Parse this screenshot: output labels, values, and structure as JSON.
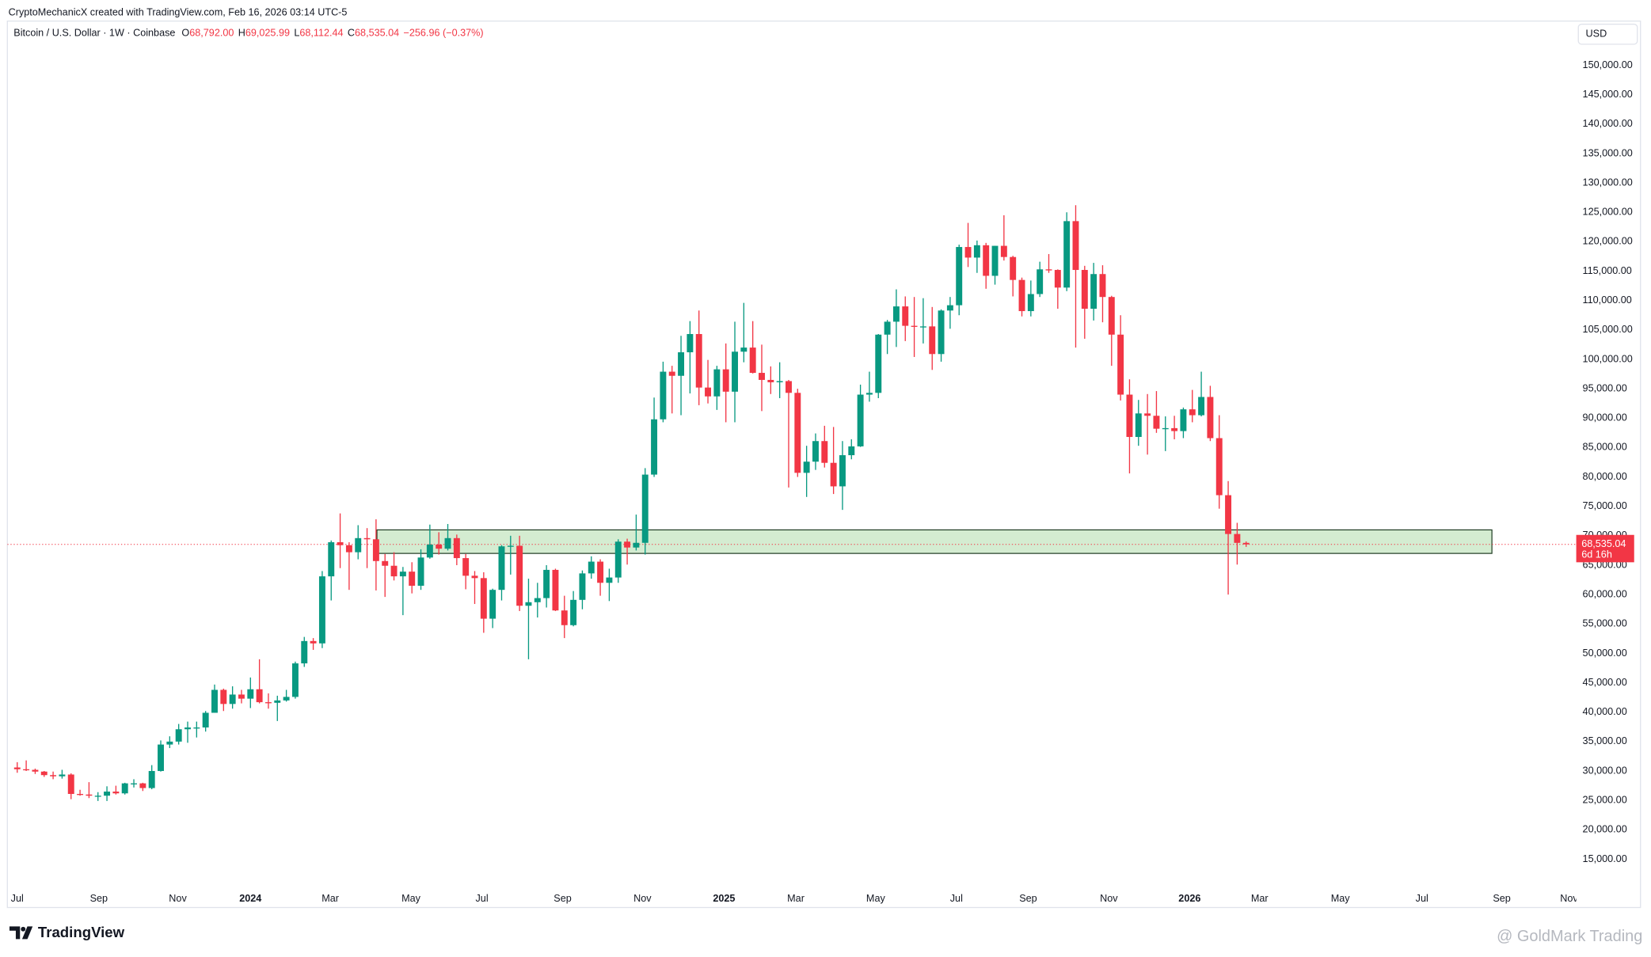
{
  "header": "CryptoMechanicX created with TradingView.com, Feb 16, 2026 03:14 UTC-5",
  "brand": "TradingView",
  "watermark": "@ GoldMark Trading",
  "currency": "USD",
  "chart_data": {
    "type": "candlestick",
    "title": "Bitcoin / U.S. Dollar · 1W · Coinbase",
    "stats": [
      {
        "prefix": "O",
        "text": "68,792.00"
      },
      {
        "prefix": "H",
        "text": "69,025.99"
      },
      {
        "prefix": "L",
        "text": "68,112.44"
      },
      {
        "prefix": "C",
        "text": "68,535.04"
      },
      {
        "text": "−256.96 (−0.37%)"
      }
    ],
    "up_color": "#089981",
    "down_color": "#f23645",
    "open": [
      30600,
      30300,
      30200,
      29900,
      29300,
      29100,
      29400,
      26100,
      26000,
      25800,
      25800,
      26500,
      26200,
      27900,
      27900,
      27100,
      30000,
      34500,
      35000,
      37100,
      37400,
      37400,
      39900,
      43800,
      41400,
      43000,
      42300,
      43900,
      41700,
      41600,
      42000,
      42600,
      48300,
      52100,
      51700,
      63100,
      68900,
      68400,
      67200,
      69600,
      69400,
      65700,
      64900,
      63100,
      63900,
      61500,
      66300,
      68500,
      67800,
      69600,
      66200,
      63200,
      62800,
      55900,
      60800,
      68200,
      68300,
      58100,
      58700,
      59400,
      64200,
      57300,
      54800,
      59100,
      63600,
      65600,
      62000,
      62900,
      69000,
      68000,
      68800,
      80400,
      89800,
      97900,
      97200,
      101200,
      104300,
      95200,
      93700,
      98300,
      94500,
      101300,
      102000,
      97700,
      96500,
      96100,
      96300,
      94300,
      80700,
      82600,
      86100,
      82400,
      78400,
      83700,
      85200,
      94000,
      94300,
      104200,
      106400,
      109000,
      105700,
      105600,
      105600,
      100900,
      108300,
      109200,
      119100,
      117300,
      119400,
      114200,
      119300,
      117400,
      113500,
      108200,
      111100,
      115300,
      115200,
      112200,
      123500,
      115200,
      108600,
      114500,
      110600,
      104200,
      94000,
      86800,
      90800,
      90400,
      88200,
      88300,
      87800,
      91500,
      90500,
      93600,
      86600,
      76900,
      70300,
      68792
    ],
    "high": [
      31500,
      31800,
      30400,
      30000,
      29900,
      30200,
      29600,
      26800,
      28100,
      26400,
      27400,
      27500,
      28000,
      28600,
      28000,
      31000,
      35200,
      35900,
      38000,
      38400,
      38400,
      40200,
      44700,
      44000,
      44400,
      43800,
      45900,
      49000,
      43200,
      42800,
      43800,
      48600,
      52800,
      52600,
      64000,
      69200,
      73800,
      68900,
      71800,
      71300,
      72800,
      66900,
      67200,
      64700,
      65500,
      67700,
      71900,
      70600,
      72000,
      70200,
      66900,
      64000,
      63800,
      61000,
      68400,
      70000,
      70000,
      62700,
      62000,
      65000,
      64400,
      59800,
      60600,
      64100,
      66500,
      66000,
      64400,
      69400,
      69500,
      73600,
      81500,
      93500,
      99600,
      98900,
      104000,
      106500,
      108300,
      99900,
      98900,
      102700,
      106400,
      109600,
      106500,
      102500,
      98800,
      99500,
      96500,
      95000,
      85300,
      87400,
      88700,
      88500,
      86100,
      86400,
      95700,
      97900,
      104300,
      106700,
      111900,
      110700,
      110600,
      110400,
      108900,
      108500,
      110600,
      119500,
      123200,
      120200,
      119800,
      119300,
      124500,
      117600,
      113900,
      113400,
      116600,
      117900,
      115300,
      125000,
      126200,
      115900,
      116400,
      116000,
      110800,
      107500,
      96600,
      93100,
      94100,
      94600,
      90300,
      90400,
      91800,
      94800,
      97900,
      95500,
      90500,
      79300,
      72200,
      69025.99
    ],
    "low": [
      29700,
      30000,
      29500,
      29000,
      28600,
      28700,
      25200,
      25800,
      25400,
      24900,
      24900,
      26000,
      26000,
      27200,
      26600,
      26900,
      29900,
      33900,
      34500,
      34800,
      35700,
      36700,
      39900,
      40200,
      40600,
      41500,
      40700,
      41500,
      40600,
      38500,
      41800,
      42300,
      47700,
      50600,
      50900,
      59000,
      64500,
      60800,
      66000,
      64500,
      60700,
      59600,
      62400,
      56500,
      60200,
      60800,
      66100,
      66800,
      67500,
      65000,
      60900,
      58400,
      53500,
      54300,
      59000,
      63400,
      57200,
      49000,
      56100,
      57800,
      57200,
      52600,
      54600,
      57500,
      62700,
      59800,
      58900,
      62000,
      65100,
      67500,
      66800,
      80000,
      89300,
      90800,
      90500,
      94200,
      92200,
      92500,
      91400,
      89300,
      89300,
      99500,
      97600,
      91200,
      94100,
      93400,
      78200,
      80000,
      76600,
      81200,
      81600,
      77100,
      74400,
      83000,
      85100,
      92800,
      93400,
      100900,
      102100,
      103100,
      100400,
      102700,
      98200,
      99600,
      105200,
      107500,
      115700,
      114700,
      112000,
      112700,
      116800,
      110700,
      107300,
      107300,
      110600,
      114700,
      108600,
      111600,
      102000,
      103500,
      106600,
      106300,
      98900,
      93000,
      80600,
      85300,
      83800,
      87500,
      84400,
      86400,
      86600,
      89300,
      90300,
      86100,
      74600,
      60000,
      65100,
      68112.44
    ],
    "close": [
      30300,
      30200,
      29900,
      29300,
      29100,
      29400,
      26100,
      26000,
      25800,
      25800,
      26500,
      26200,
      27900,
      27900,
      27100,
      30000,
      34500,
      35000,
      37100,
      37400,
      37400,
      39900,
      43800,
      41400,
      43000,
      42300,
      43900,
      41700,
      41600,
      42000,
      42600,
      48300,
      52100,
      51700,
      63100,
      68900,
      68400,
      67200,
      69600,
      69400,
      65700,
      64900,
      63100,
      63900,
      61500,
      66300,
      68500,
      67800,
      69600,
      66200,
      63200,
      62800,
      55900,
      60800,
      68200,
      68300,
      58100,
      58700,
      59400,
      64200,
      57300,
      54800,
      59100,
      63600,
      65600,
      62000,
      62900,
      69000,
      68000,
      68800,
      80400,
      89800,
      97900,
      97200,
      101200,
      104300,
      95200,
      93700,
      98300,
      94500,
      101300,
      102000,
      97700,
      96500,
      96100,
      96300,
      94300,
      80700,
      82600,
      86100,
      82400,
      78400,
      83700,
      85200,
      94000,
      94300,
      104200,
      106400,
      109000,
      105700,
      105600,
      105600,
      100900,
      108300,
      109200,
      119100,
      117300,
      119400,
      114200,
      119300,
      117400,
      113500,
      108200,
      111100,
      115300,
      115200,
      112200,
      123500,
      115200,
      108600,
      114500,
      110600,
      104200,
      94000,
      86800,
      90800,
      90400,
      88200,
      88300,
      87800,
      91500,
      90500,
      93600,
      86600,
      76900,
      70300,
      68792,
      68535.04
    ],
    "xlim": [
      -1.1,
      173.8
    ],
    "ylim": [
      9830,
      157520
    ],
    "xticks": [
      {
        "value": 0,
        "label": "Jul"
      },
      {
        "value": 9.1,
        "label": "Sep"
      },
      {
        "value": 17.9,
        "label": "Nov"
      },
      {
        "value": 26,
        "label": "2024"
      },
      {
        "value": 34.9,
        "label": "Mar"
      },
      {
        "value": 43.9,
        "label": "May"
      },
      {
        "value": 51.8,
        "label": "Jul"
      },
      {
        "value": 60.8,
        "label": "Sep"
      },
      {
        "value": 69.7,
        "label": "Nov"
      },
      {
        "value": 78.8,
        "label": "2025"
      },
      {
        "value": 86.8,
        "label": "Mar"
      },
      {
        "value": 95.7,
        "label": "May"
      },
      {
        "value": 104.7,
        "label": "Jul"
      },
      {
        "value": 112.7,
        "label": "Sep"
      },
      {
        "value": 121.7,
        "label": "Nov"
      },
      {
        "value": 130.7,
        "label": "2026"
      },
      {
        "value": 138.5,
        "label": "Mar"
      },
      {
        "value": 147.5,
        "label": "May"
      },
      {
        "value": 156.6,
        "label": "Jul"
      },
      {
        "value": 165.5,
        "label": "Sep"
      },
      {
        "value": 173,
        "label": "Nov"
      }
    ],
    "yticks": [
      {
        "value": 15000,
        "label": "15,000.00"
      },
      {
        "value": 20000,
        "label": "20,000.00"
      },
      {
        "value": 25000,
        "label": "25,000.00"
      },
      {
        "value": 30000,
        "label": "30,000.00"
      },
      {
        "value": 35000,
        "label": "35,000.00"
      },
      {
        "value": 40000,
        "label": "40,000.00"
      },
      {
        "value": 45000,
        "label": "45,000.00"
      },
      {
        "value": 50000,
        "label": "50,000.00"
      },
      {
        "value": 55000,
        "label": "55,000.00"
      },
      {
        "value": 60000,
        "label": "60,000.00"
      },
      {
        "value": 65000,
        "label": "65,000.00"
      },
      {
        "value": 70000,
        "label": "70,000.00"
      },
      {
        "value": 75000,
        "label": "75,000.00"
      },
      {
        "value": 80000,
        "label": "80,000.00"
      },
      {
        "value": 85000,
        "label": "85,000.00"
      },
      {
        "value": 90000,
        "label": "90,000.00"
      },
      {
        "value": 95000,
        "label": "95,000.00"
      },
      {
        "value": 100000,
        "label": "100,000.00"
      },
      {
        "value": 105000,
        "label": "105,000.00"
      },
      {
        "value": 110000,
        "label": "110,000.00"
      },
      {
        "value": 115000,
        "label": "115,000.00"
      },
      {
        "value": 120000,
        "label": "120,000.00"
      },
      {
        "value": 125000,
        "label": "125,000.00"
      },
      {
        "value": 130000,
        "label": "130,000.00"
      },
      {
        "value": 135000,
        "label": "135,000.00"
      },
      {
        "value": 140000,
        "label": "140,000.00"
      },
      {
        "value": 145000,
        "label": "145,000.00"
      },
      {
        "value": 150000,
        "label": "150,000.00"
      }
    ],
    "grid": false,
    "zone": {
      "x": [
        40.1,
        164.4
      ],
      "y": [
        67000,
        71000
      ],
      "color": "#d4ecd1"
    },
    "last_price": {
      "value": 68535.04,
      "label": "68,535.04"
    },
    "countdown": "6d 16h"
  }
}
